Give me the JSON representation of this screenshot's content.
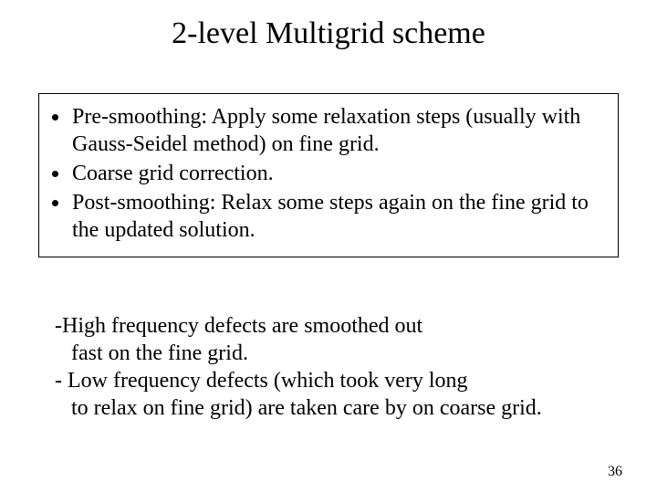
{
  "title": "2-level Multigrid scheme",
  "bullets": {
    "items": [
      "Pre-smoothing: Apply some relaxation steps (usually with Gauss-Seidel method) on fine grid.",
      "Coarse grid correction.",
      "Post-smoothing: Relax some steps again on the fine grid to the updated solution."
    ]
  },
  "notes": {
    "l1": "-High frequency defects are smoothed out",
    "l2": "fast on the fine grid.",
    "l3": "- Low frequency defects (which took very long",
    "l4": "to relax on fine grid) are taken care by on coarse grid."
  },
  "page_number": "36",
  "style": {
    "background_color": "#ffffff",
    "text_color": "#000000",
    "border_color": "#000000",
    "title_fontsize": 34,
    "body_fontsize": 24,
    "pagenum_fontsize": 16,
    "font_family": "Times New Roman"
  }
}
